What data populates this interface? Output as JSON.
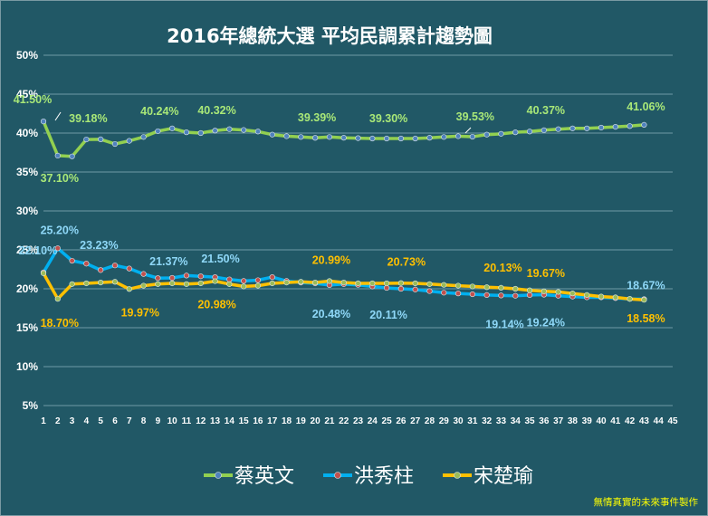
{
  "chart_data": {
    "type": "line",
    "title": "2016年總統大選 平均民調累計趨勢圖",
    "x": [
      1,
      2,
      3,
      4,
      5,
      6,
      7,
      8,
      9,
      10,
      11,
      12,
      13,
      14,
      15,
      16,
      17,
      18,
      19,
      20,
      21,
      22,
      23,
      24,
      25,
      26,
      27,
      28,
      29,
      30,
      31,
      32,
      33,
      34,
      35,
      36,
      37,
      38,
      39,
      40,
      41,
      42,
      43
    ],
    "x_ticks": [
      "1",
      "2",
      "3",
      "4",
      "5",
      "6",
      "7",
      "8",
      "9",
      "10",
      "11",
      "12",
      "13",
      "14",
      "15",
      "16",
      "17",
      "18",
      "19",
      "20",
      "21",
      "22",
      "23",
      "24",
      "25",
      "26",
      "27",
      "28",
      "29",
      "30",
      "31",
      "32",
      "33",
      "34",
      "35",
      "36",
      "37",
      "38",
      "39",
      "40",
      "41",
      "42",
      "43",
      "44",
      "45"
    ],
    "y_ticks": [
      "5%",
      "10%",
      "15%",
      "20%",
      "25%",
      "30%",
      "35%",
      "40%",
      "45%",
      "50%"
    ],
    "xlim": [
      1,
      45
    ],
    "ylim": [
      5,
      50
    ],
    "y_unit": "%",
    "grid": true,
    "legend_position": "bottom",
    "series": [
      {
        "name": "蔡英文",
        "color": "#92d050",
        "marker_color": "#4f81bd",
        "values": [
          41.5,
          37.1,
          37.0,
          39.18,
          39.2,
          38.6,
          39.0,
          39.5,
          40.24,
          40.6,
          40.1,
          40.0,
          40.32,
          40.5,
          40.4,
          40.2,
          39.8,
          39.6,
          39.5,
          39.39,
          39.5,
          39.4,
          39.35,
          39.3,
          39.3,
          39.3,
          39.3,
          39.4,
          39.5,
          39.6,
          39.53,
          39.8,
          39.9,
          40.1,
          40.2,
          40.37,
          40.5,
          40.6,
          40.6,
          40.7,
          40.8,
          40.9,
          41.06
        ],
        "labels": [
          {
            "i": 0,
            "text": "41.50%"
          },
          {
            "i": 1,
            "text": "37.10%"
          },
          {
            "i": 3,
            "text": "39.18%"
          },
          {
            "i": 8,
            "text": "40.24%"
          },
          {
            "i": 12,
            "text": "40.32%"
          },
          {
            "i": 19,
            "text": "39.39%"
          },
          {
            "i": 24,
            "text": "39.30%"
          },
          {
            "i": 30,
            "text": "39.53%"
          },
          {
            "i": 35,
            "text": "40.37%"
          },
          {
            "i": 42,
            "text": "41.06%"
          }
        ]
      },
      {
        "name": "洪秀柱",
        "color": "#00b0f0",
        "marker_color": "#c0504d",
        "values": [
          22.1,
          25.2,
          23.6,
          23.23,
          22.4,
          23.0,
          22.6,
          21.9,
          21.37,
          21.4,
          21.7,
          21.6,
          21.5,
          21.2,
          21.0,
          21.1,
          21.5,
          21.0,
          20.8,
          20.7,
          20.48,
          20.6,
          20.5,
          20.3,
          20.11,
          20.0,
          19.9,
          19.7,
          19.5,
          19.4,
          19.3,
          19.2,
          19.14,
          19.1,
          19.2,
          19.24,
          19.1,
          19.0,
          18.9,
          18.9,
          18.8,
          18.7,
          18.67
        ],
        "labels": [
          {
            "i": 0,
            "text": "22.10%"
          },
          {
            "i": 1,
            "text": "25.20%"
          },
          {
            "i": 3,
            "text": "23.23%"
          },
          {
            "i": 8,
            "text": "21.37%"
          },
          {
            "i": 12,
            "text": "21.50%"
          },
          {
            "i": 20,
            "text": "20.48%"
          },
          {
            "i": 24,
            "text": "20.11%"
          },
          {
            "i": 32,
            "text": "19.14%"
          },
          {
            "i": 35,
            "text": "19.24%"
          },
          {
            "i": 42,
            "text": "18.67%"
          }
        ]
      },
      {
        "name": "宋楚瑜",
        "color": "#ffc000",
        "marker_color": "#9bbb59",
        "values": [
          22.0,
          18.7,
          20.6,
          20.7,
          20.8,
          20.9,
          19.97,
          20.4,
          20.6,
          20.7,
          20.6,
          20.7,
          20.98,
          20.6,
          20.3,
          20.4,
          20.7,
          20.8,
          20.9,
          20.8,
          20.99,
          20.8,
          20.7,
          20.7,
          20.7,
          20.73,
          20.7,
          20.6,
          20.5,
          20.4,
          20.3,
          20.2,
          20.13,
          20.0,
          19.8,
          19.67,
          19.6,
          19.4,
          19.2,
          19.0,
          18.9,
          18.7,
          18.58
        ],
        "labels": [
          {
            "i": 1,
            "text": "18.70%"
          },
          {
            "i": 6,
            "text": "19.97%"
          },
          {
            "i": 12,
            "text": "20.98%"
          },
          {
            "i": 20,
            "text": "20.99%"
          },
          {
            "i": 25,
            "text": "20.73%"
          },
          {
            "i": 32,
            "text": "20.13%"
          },
          {
            "i": 35,
            "text": "19.67%"
          },
          {
            "i": 42,
            "text": "18.58%"
          }
        ]
      }
    ]
  },
  "credit": "無情真實的未來事件製作",
  "colors": {
    "background": "#215866",
    "grid": "#6f9aa6",
    "title": "#ffffff",
    "axis_text": "#ffffff",
    "credit": "#ffff00"
  }
}
